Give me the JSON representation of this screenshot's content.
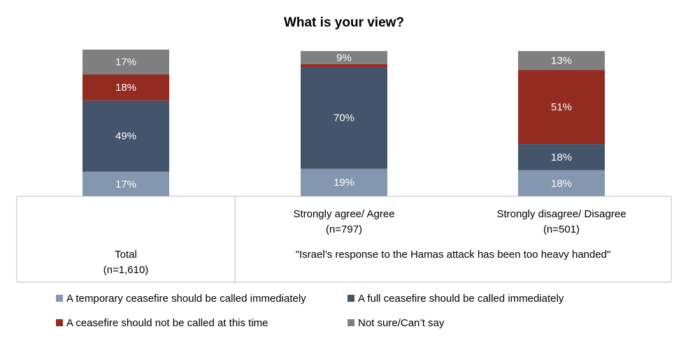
{
  "chart_data": {
    "type": "bar",
    "stacked": true,
    "title": "What is your view?",
    "categories": [
      {
        "label": "Total",
        "sublabel": "(n=1,610)"
      },
      {
        "label": "Strongly agree/ Agree",
        "sublabel": "(n=797)"
      },
      {
        "label": "Strongly disagree/ Disagree",
        "sublabel": "(n=501)"
      }
    ],
    "group_label": "\"Israel’s response to the Hamas attack has been too heavy handed\"",
    "series": [
      {
        "name": "A temporary ceasefire should be called immediately",
        "color": "#8496b0",
        "values": [
          17,
          19,
          18
        ],
        "labels": [
          "17%",
          "19%",
          "18%"
        ]
      },
      {
        "name": "A full ceasefire should be called immediately",
        "color": "#44546a",
        "values": [
          49,
          70,
          18
        ],
        "labels": [
          "49%",
          "70%",
          "18%"
        ]
      },
      {
        "name": "A ceasefire should not be called at this time",
        "color": "#922b21",
        "values": [
          18,
          2,
          51
        ],
        "labels": [
          "18%",
          "",
          "51%"
        ]
      },
      {
        "name": "Not sure/Can’t say",
        "color": "#7f7f7f",
        "values": [
          17,
          9,
          13
        ],
        "labels": [
          "17%",
          "9%",
          "13%"
        ]
      }
    ],
    "ylim": [
      0,
      101
    ],
    "grid": false,
    "legend_position": "bottom"
  }
}
